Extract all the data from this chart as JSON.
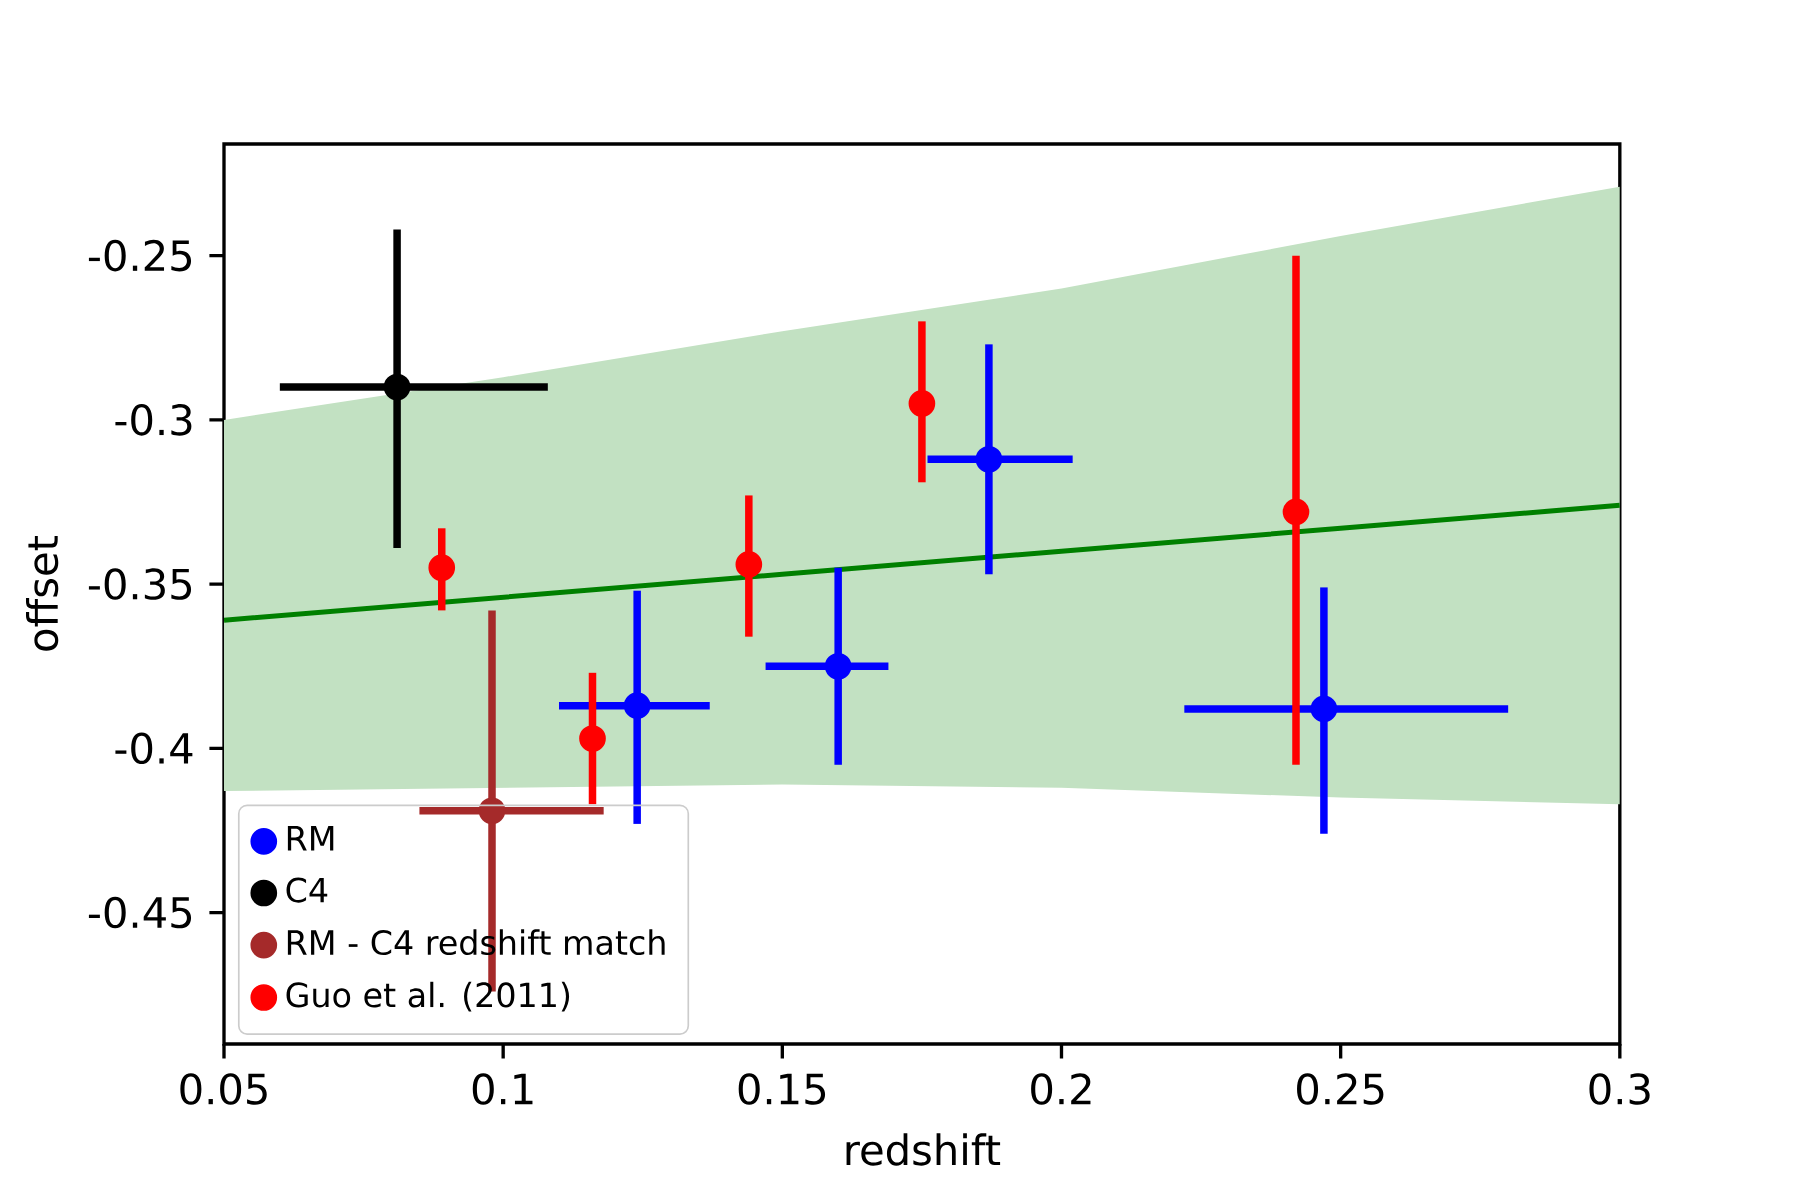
{
  "chart_data": {
    "type": "scatter",
    "xlabel": "redshift",
    "ylabel": "offset",
    "xlim": [
      0.05,
      0.3
    ],
    "ylim": [
      -0.49,
      -0.216
    ],
    "xticks": [
      0.05,
      0.1,
      0.15,
      0.2,
      0.25,
      0.3
    ],
    "yticks": [
      -0.45,
      -0.4,
      -0.35,
      -0.3,
      -0.25
    ],
    "legend": "bottom left",
    "grid": false,
    "series": [
      {
        "type": "line",
        "color": "#008000",
        "x": [
          0.05,
          0.1,
          0.15,
          0.2,
          0.25,
          0.3
        ],
        "values": [
          -0.361,
          -0.354,
          -0.347,
          -0.34,
          -0.333,
          -0.326
        ],
        "lower": [
          -0.413,
          -0.412,
          -0.411,
          -0.412,
          -0.415,
          -0.417
        ],
        "upper": [
          -0.3,
          -0.287,
          -0.273,
          -0.26,
          -0.244,
          -0.229
        ],
        "marker": "none",
        "line_style": "solid"
      },
      {
        "name": "RM",
        "color": "#0000ff",
        "marker": "circle",
        "x": [
          0.124,
          0.16,
          0.187,
          0.247
        ],
        "values": [
          -0.387,
          -0.375,
          -0.312,
          -0.388
        ],
        "errors": [
          [
            -0.423,
            -0.352
          ],
          [
            -0.405,
            -0.345
          ],
          [
            -0.347,
            -0.277
          ],
          [
            -0.426,
            -0.351
          ]
        ],
        "xerrors": [
          [
            0.11,
            0.137
          ],
          [
            0.147,
            0.169
          ],
          [
            0.176,
            0.202
          ],
          [
            0.222,
            0.28
          ]
        ]
      },
      {
        "name": "C4",
        "color": "#000000",
        "marker": "circle",
        "x": [
          0.081
        ],
        "values": [
          -0.29
        ],
        "errors": [
          [
            -0.339,
            -0.242
          ]
        ],
        "xerrors": [
          [
            0.06,
            0.108
          ]
        ]
      },
      {
        "name": "RM - C4 redshift match",
        "color": "#a52a2a",
        "marker": "circle",
        "x": [
          0.098
        ],
        "values": [
          -0.419
        ],
        "errors": [
          [
            -0.474,
            -0.358
          ]
        ],
        "xerrors": [
          [
            0.085,
            0.118
          ]
        ]
      },
      {
        "name": "Guo et al. (2011)",
        "color": "#ff0000",
        "marker": "circle",
        "x": [
          0.089,
          0.116,
          0.144,
          0.175,
          0.242
        ],
        "values": [
          -0.345,
          -0.397,
          -0.344,
          -0.295,
          -0.328
        ],
        "errors": [
          [
            -0.358,
            -0.333
          ],
          [
            -0.417,
            -0.377
          ],
          [
            -0.366,
            -0.323
          ],
          [
            -0.319,
            -0.27
          ],
          [
            -0.405,
            -0.25
          ]
        ]
      }
    ]
  }
}
